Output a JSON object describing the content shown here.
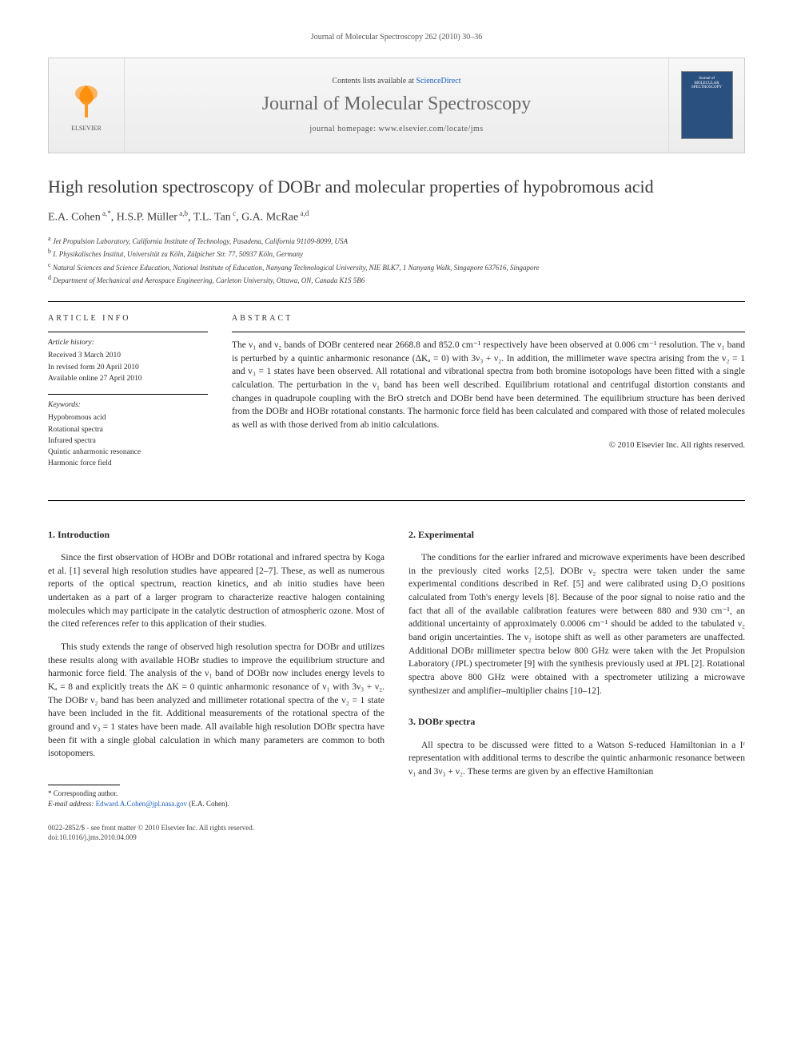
{
  "header": {
    "journal_ref": "Journal of Molecular Spectroscopy 262 (2010) 30–36"
  },
  "banner": {
    "contents_text": "Contents lists available at ",
    "contents_link": "ScienceDirect",
    "journal_name": "Journal of Molecular Spectroscopy",
    "homepage_label": "journal homepage: ",
    "homepage_url": "www.elsevier.com/locate/jms",
    "cover_line1": "Journal of",
    "cover_line2": "MOLECULAR",
    "cover_line3": "SPECTROSCOPY",
    "elsevier_label": "ELSEVIER"
  },
  "title": "High resolution spectroscopy of DOBr and molecular properties of hypobromous acid",
  "authors_html": "E.A. Cohen<sup> a,*</sup>, H.S.P. Müller<sup> a,b</sup>, T.L. Tan<sup> c</sup>, G.A. McRae<sup> a,d</sup>",
  "affiliations": [
    "Jet Propulsion Laboratory, California Institute of Technology, Pasadena, California 91109-8099, USA",
    "I. Physikalisches Institut, Universität zu Köln, Zülpicher Str. 77, 50937 Köln, Germany",
    "Natural Sciences and Science Education, National Institute of Education, Nanyang Technological University, NIE BLK7, 1 Nanyang Walk, Singapore 637616, Singapore",
    "Department of Mechanical and Aerospace Engineering, Carleton University, Ottawa, ON, Canada K1S 5B6"
  ],
  "aff_labels": [
    "a",
    "b",
    "c",
    "d"
  ],
  "info": {
    "head": "ARTICLE INFO",
    "history_label": "Article history:",
    "history": [
      "Received 3 March 2010",
      "In revised form 20 April 2010",
      "Available online 27 April 2010"
    ],
    "keywords_label": "Keywords:",
    "keywords": [
      "Hypobromous acid",
      "Rotational spectra",
      "Infrared spectra",
      "Quintic anharmonic resonance",
      "Harmonic force field"
    ]
  },
  "abstract": {
    "head": "ABSTRACT",
    "text": "The ν₁ and ν₂ bands of DOBr centered near 2668.8 and 852.0 cm⁻¹ respectively have been observed at 0.006 cm⁻¹ resolution. The ν₁ band is perturbed by a quintic anharmonic resonance (ΔKₐ = 0) with 3ν₃ + ν₂. In addition, the millimeter wave spectra arising from the v₂ = 1 and v₃ = 1 states have been observed. All rotational and vibrational spectra from both bromine isotopologs have been fitted with a single calculation. The perturbation in the ν₁ band has been well described. Equilibrium rotational and centrifugal distortion constants and changes in quadrupole coupling with the BrO stretch and DOBr bend have been determined. The equilibrium structure has been derived from the DOBr and HOBr rotational constants. The harmonic force field has been calculated and compared with those of related molecules as well as with those derived from ab initio calculations.",
    "copyright": "© 2010 Elsevier Inc. All rights reserved."
  },
  "sections": {
    "intro_head": "1. Introduction",
    "intro_p1": "Since the first observation of HOBr and DOBr rotational and infrared spectra by Koga et al. [1] several high resolution studies have appeared [2–7]. These, as well as numerous reports of the optical spectrum, reaction kinetics, and ab initio studies have been undertaken as a part of a larger program to characterize reactive halogen containing molecules which may participate in the catalytic destruction of atmospheric ozone. Most of the cited references refer to this application of their studies.",
    "intro_p2": "This study extends the range of observed high resolution spectra for DOBr and utilizes these results along with available HOBr studies to improve the equilibrium structure and harmonic force field. The analysis of the ν₁ band of DOBr now includes energy levels to Kₐ = 8 and explicitly treats the ΔK = 0 quintic anharmonic resonance of ν₁ with 3ν₃ + ν₂. The DOBr ν₂ band has been analyzed and millimeter rotational spectra of the v₂ = 1 state have been included in the fit. Additional measurements of the rotational spectra of the ground and v₃ = 1 states have been made. All available high resolution DOBr spectra have been fit with a single global calculation in which many parameters are common to both isotopomers.",
    "exp_head": "2. Experimental",
    "exp_p1": "The conditions for the earlier infrared and microwave experiments have been described in the previously cited works [2,5]. DOBr ν₂ spectra were taken under the same experimental conditions described in Ref. [5] and were calibrated using D₂O positions calculated from Toth's energy levels [8]. Because of the poor signal to noise ratio and the fact that all of the available calibration features were between 880 and 930 cm⁻¹, an additional uncertainty of approximately 0.0006 cm⁻¹ should be added to the tabulated ν₂ band origin uncertainties. The ν₂ isotope shift as well as other parameters are unaffected. Additional DOBr millimeter spectra below 800 GHz were taken with the Jet Propulsion Laboratory (JPL) spectrometer [9] with the synthesis previously used at JPL [2]. Rotational spectra above 800 GHz were obtained with a spectrometer utilizing a microwave synthesizer and amplifier–multiplier chains [10–12].",
    "spec_head": "3. DOBr spectra",
    "spec_p1": "All spectra to be discussed were fitted to a Watson S-reduced Hamiltonian in a Iʳ representation with additional terms to describe the quintic anharmonic resonance between ν₁ and 3ν₃ + ν₂. These terms are given by an effective Hamiltonian"
  },
  "footnote": {
    "corr_label": "* Corresponding author.",
    "email_label": "E-mail address: ",
    "email": "Edward.A.Cohen@jpl.nasa.gov",
    "email_suffix": " (E.A. Cohen)."
  },
  "footer": {
    "left_line1": "0022-2852/$ - see front matter © 2010 Elsevier Inc. All rights reserved.",
    "left_line2": "doi:10.1016/j.jms.2010.04.009"
  },
  "colors": {
    "link": "#2060c0",
    "text": "#2a2a2a",
    "banner_bg_top": "#f7f7f7",
    "banner_bg_bottom": "#ececec",
    "cover_bg": "#2a5080",
    "elsevier_orange": "#ff8a00"
  }
}
